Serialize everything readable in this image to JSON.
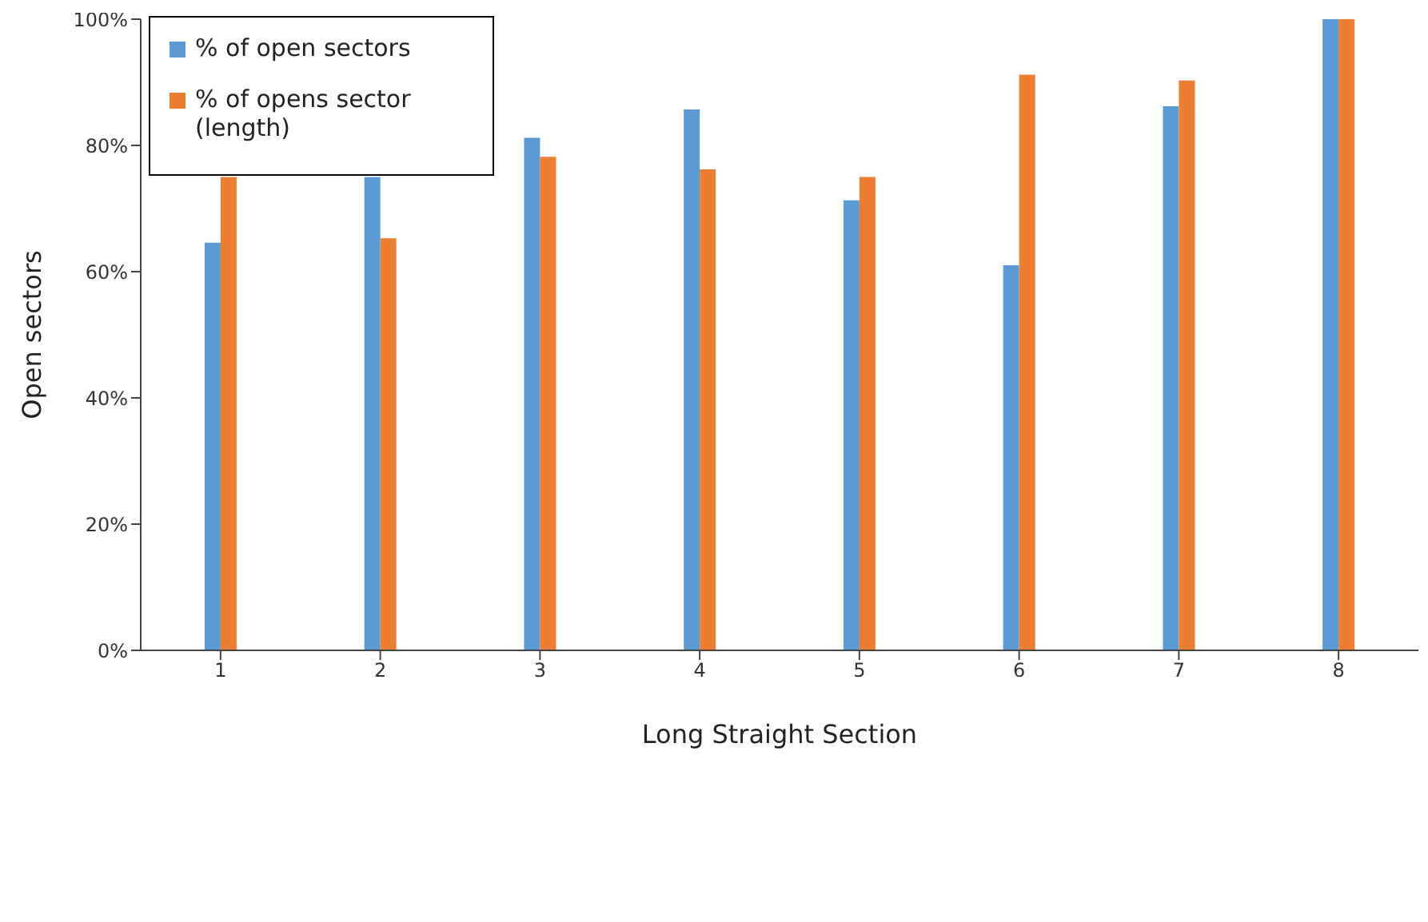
{
  "chart_data": {
    "type": "bar",
    "xlabel": "Long Straight Section",
    "ylabel": "Open sectors",
    "categories": [
      "1",
      "2",
      "3",
      "4",
      "5",
      "6",
      "7",
      "8"
    ],
    "series": [
      {
        "name": "% of open sectors",
        "color": "#5b9bd5",
        "values": [
          64.6,
          75,
          81.2,
          85.7,
          71.3,
          61,
          86.2,
          100
        ]
      },
      {
        "name": "% of opens sector (length)",
        "color": "#ed7d31",
        "values": [
          75,
          65.3,
          78.2,
          76.2,
          75,
          91.2,
          90.3,
          100
        ]
      }
    ],
    "ylim": [
      0,
      100
    ],
    "yticks": [
      {
        "value": 0,
        "label": "0%"
      },
      {
        "value": 20,
        "label": "20%"
      },
      {
        "value": 40,
        "label": "40%"
      },
      {
        "value": 60,
        "label": "60%"
      },
      {
        "value": 80,
        "label": "80%"
      },
      {
        "value": 100,
        "label": "100%"
      }
    ],
    "grid": false,
    "legend": "top left"
  }
}
